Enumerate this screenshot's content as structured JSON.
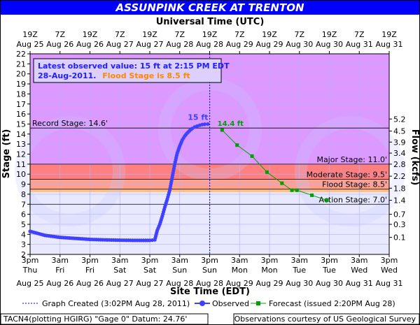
{
  "title": "ASSUNPINK CREEK AT TRENTON",
  "top_axis_title": "Universal Time (UTC)",
  "bottom_axis_title": "Site Time (EDT)",
  "left_axis_title": "Stage (ft)",
  "right_axis_title": "Flow (kcfs)",
  "info_box": {
    "line1": "Latest observed value: 15 ft at 2:15 PM EDT",
    "line2_date": "28-Aug-2011.",
    "line2_flood": "Flood Stage is 8.5 ft"
  },
  "record_stage_label": "Record Stage: 14.6'",
  "legend": {
    "graph_created": "Graph Created (3:02PM Aug 28, 2011)",
    "observed": "Observed",
    "forecast": "Forecast (issued 2:20PM Aug 28)"
  },
  "footer_left": "TACN4(plotting HGIRG) \"Gage 0\" Datum: 24.76'",
  "footer_right": "Observations courtesy of US Geological Survey",
  "colors": {
    "major": "#ff8080",
    "moderate": "#ffa090",
    "flood": "#ffc080",
    "action": "#ffff80",
    "observed": "#4040ff",
    "forecast": "#00a000"
  },
  "chart_data": {
    "type": "line",
    "xlabel": "Site Time (EDT)",
    "ylabel": "Stage (ft)",
    "y2label": "Flow (kcfs)",
    "x_range": [
      "2011-08-25 15:00 EDT",
      "2011-08-31 15:00 EDT"
    ],
    "ylim": [
      2,
      22
    ],
    "yticks": [
      2,
      3,
      4,
      5,
      6,
      7,
      8,
      9,
      10,
      11,
      12,
      13,
      14,
      15,
      16,
      17,
      18,
      19,
      20,
      21,
      22
    ],
    "grid": true,
    "top_ticks": [
      {
        "time": "2011-08-25 15:00",
        "l1": "19Z",
        "l2": "Aug 25"
      },
      {
        "time": "2011-08-26 03:00",
        "l1": "7Z",
        "l2": "Aug 26"
      },
      {
        "time": "2011-08-26 15:00",
        "l1": "19Z",
        "l2": "Aug 26"
      },
      {
        "time": "2011-08-27 03:00",
        "l1": "7Z",
        "l2": "Aug 27"
      },
      {
        "time": "2011-08-27 15:00",
        "l1": "19Z",
        "l2": "Aug 27"
      },
      {
        "time": "2011-08-28 03:00",
        "l1": "7Z",
        "l2": "Aug 28"
      },
      {
        "time": "2011-08-28 15:00",
        "l1": "19Z",
        "l2": "Aug 28"
      },
      {
        "time": "2011-08-29 03:00",
        "l1": "7Z",
        "l2": "Aug 29"
      },
      {
        "time": "2011-08-29 15:00",
        "l1": "19Z",
        "l2": "Aug 29"
      },
      {
        "time": "2011-08-30 03:00",
        "l1": "7Z",
        "l2": "Aug 30"
      },
      {
        "time": "2011-08-30 15:00",
        "l1": "19Z",
        "l2": "Aug 30"
      },
      {
        "time": "2011-08-31 03:00",
        "l1": "7Z",
        "l2": "Aug 31"
      },
      {
        "time": "2011-08-31 15:00",
        "l1": "19Z",
        "l2": "Aug 31"
      }
    ],
    "bottom_ticks": [
      {
        "time": "2011-08-25 15:00",
        "l1": "3pm",
        "l2": "Thu",
        "l3": "Aug 25"
      },
      {
        "time": "2011-08-26 03:00",
        "l1": "3am",
        "l2": "Fri",
        "l3": "Aug 26"
      },
      {
        "time": "2011-08-26 15:00",
        "l1": "3pm",
        "l2": "Fri",
        "l3": "Aug 26"
      },
      {
        "time": "2011-08-27 03:00",
        "l1": "3am",
        "l2": "Sat",
        "l3": "Aug 27"
      },
      {
        "time": "2011-08-27 15:00",
        "l1": "3pm",
        "l2": "Sat",
        "l3": "Aug 27"
      },
      {
        "time": "2011-08-28 03:00",
        "l1": "3am",
        "l2": "Sun",
        "l3": "Aug 28"
      },
      {
        "time": "2011-08-28 15:00",
        "l1": "3pm",
        "l2": "Sun",
        "l3": "Aug 28"
      },
      {
        "time": "2011-08-29 03:00",
        "l1": "3am",
        "l2": "Mon",
        "l3": "Aug 29"
      },
      {
        "time": "2011-08-29 15:00",
        "l1": "3pm",
        "l2": "Mon",
        "l3": "Aug 29"
      },
      {
        "time": "2011-08-30 03:00",
        "l1": "3am",
        "l2": "Tue",
        "l3": "Aug 30"
      },
      {
        "time": "2011-08-30 15:00",
        "l1": "3pm",
        "l2": "Tue",
        "l3": "Aug 30"
      },
      {
        "time": "2011-08-31 03:00",
        "l1": "3am",
        "l2": "Wed",
        "l3": "Aug 31"
      },
      {
        "time": "2011-08-31 15:00",
        "l1": "3pm",
        "l2": "Wed",
        "l3": "Aug 31"
      }
    ],
    "right_axis_ticks": [
      {
        "stage": 3.7,
        "label": "0.1"
      },
      {
        "stage": 5.0,
        "label": "0.3"
      },
      {
        "stage": 6.0,
        "label": "0.7"
      },
      {
        "stage": 7.4,
        "label": "1.4"
      },
      {
        "stage": 8.6,
        "label": "1.8"
      },
      {
        "stage": 9.8,
        "label": "2.2"
      },
      {
        "stage": 11.0,
        "label": "2.8"
      },
      {
        "stage": 12.1,
        "label": "3.4"
      },
      {
        "stage": 13.2,
        "label": "3.9"
      },
      {
        "stage": 14.3,
        "label": "4.5"
      },
      {
        "stage": 15.5,
        "label": "5.2"
      }
    ],
    "categories_thresholds": [
      {
        "name": "Record Stage",
        "stage": 14.6,
        "label": "Record Stage: 14.6'"
      },
      {
        "name": "Major Stage",
        "stage": 11.0,
        "label": "Major Stage: 11.0'"
      },
      {
        "name": "Moderate Stage",
        "stage": 9.5,
        "label": "Moderate Stage: 9.5'"
      },
      {
        "name": "Flood Stage",
        "stage": 8.5,
        "label": "Flood Stage: 8.5'"
      },
      {
        "name": "Action Stage",
        "stage": 7.0,
        "label": "Action Stage: 7.0'"
      }
    ],
    "graph_created_time": "2011-08-28 15:02",
    "series": [
      {
        "name": "Observed",
        "color": "#4040ff",
        "x": [
          "2011-08-25 15:00",
          "2011-08-25 18:00",
          "2011-08-25 21:00",
          "2011-08-26 00:00",
          "2011-08-26 03:00",
          "2011-08-26 06:00",
          "2011-08-26 09:00",
          "2011-08-26 12:00",
          "2011-08-26 15:00",
          "2011-08-26 21:00",
          "2011-08-27 03:00",
          "2011-08-27 09:00",
          "2011-08-27 15:00",
          "2011-08-27 17:00",
          "2011-08-27 18:00",
          "2011-08-27 19:00",
          "2011-08-27 20:00",
          "2011-08-27 21:00",
          "2011-08-27 22:00",
          "2011-08-27 23:00",
          "2011-08-28 00:00",
          "2011-08-28 01:00",
          "2011-08-28 02:00",
          "2011-08-28 03:00",
          "2011-08-28 04:00",
          "2011-08-28 05:00",
          "2011-08-28 06:00",
          "2011-08-28 07:00",
          "2011-08-28 08:00",
          "2011-08-28 09:00",
          "2011-08-28 10:00",
          "2011-08-28 11:00",
          "2011-08-28 12:00",
          "2011-08-28 13:00",
          "2011-08-28 14:15"
        ],
        "y": [
          4.3,
          4.1,
          3.9,
          3.8,
          3.7,
          3.65,
          3.6,
          3.55,
          3.5,
          3.45,
          3.42,
          3.4,
          3.4,
          3.45,
          4.4,
          5.0,
          5.8,
          6.7,
          7.5,
          8.4,
          9.7,
          11.0,
          12.1,
          12.8,
          13.4,
          13.8,
          14.1,
          14.35,
          14.55,
          14.7,
          14.8,
          14.88,
          14.95,
          14.98,
          15.0
        ],
        "label": "15 ft"
      },
      {
        "name": "Forecast (issued 2:20PM Aug 28)",
        "color": "#00a000",
        "x": [
          "2011-08-28 20:00",
          "2011-08-29 02:00",
          "2011-08-29 08:00",
          "2011-08-29 14:00",
          "2011-08-29 20:00",
          "2011-08-30 00:00",
          "2011-08-30 02:00",
          "2011-08-30 08:00",
          "2011-08-30 14:00"
        ],
        "y": [
          14.4,
          12.9,
          11.8,
          10.2,
          9.1,
          8.4,
          8.4,
          7.9,
          7.4
        ],
        "label": "14.4 ft"
      }
    ]
  }
}
